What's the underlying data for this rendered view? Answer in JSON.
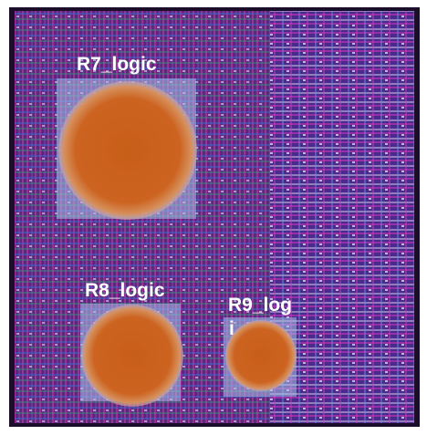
{
  "regions": [
    {
      "label": "R7_logic"
    },
    {
      "label": "R8_logic"
    },
    {
      "label": "R9_log",
      "label_overflow": "i"
    }
  ]
}
